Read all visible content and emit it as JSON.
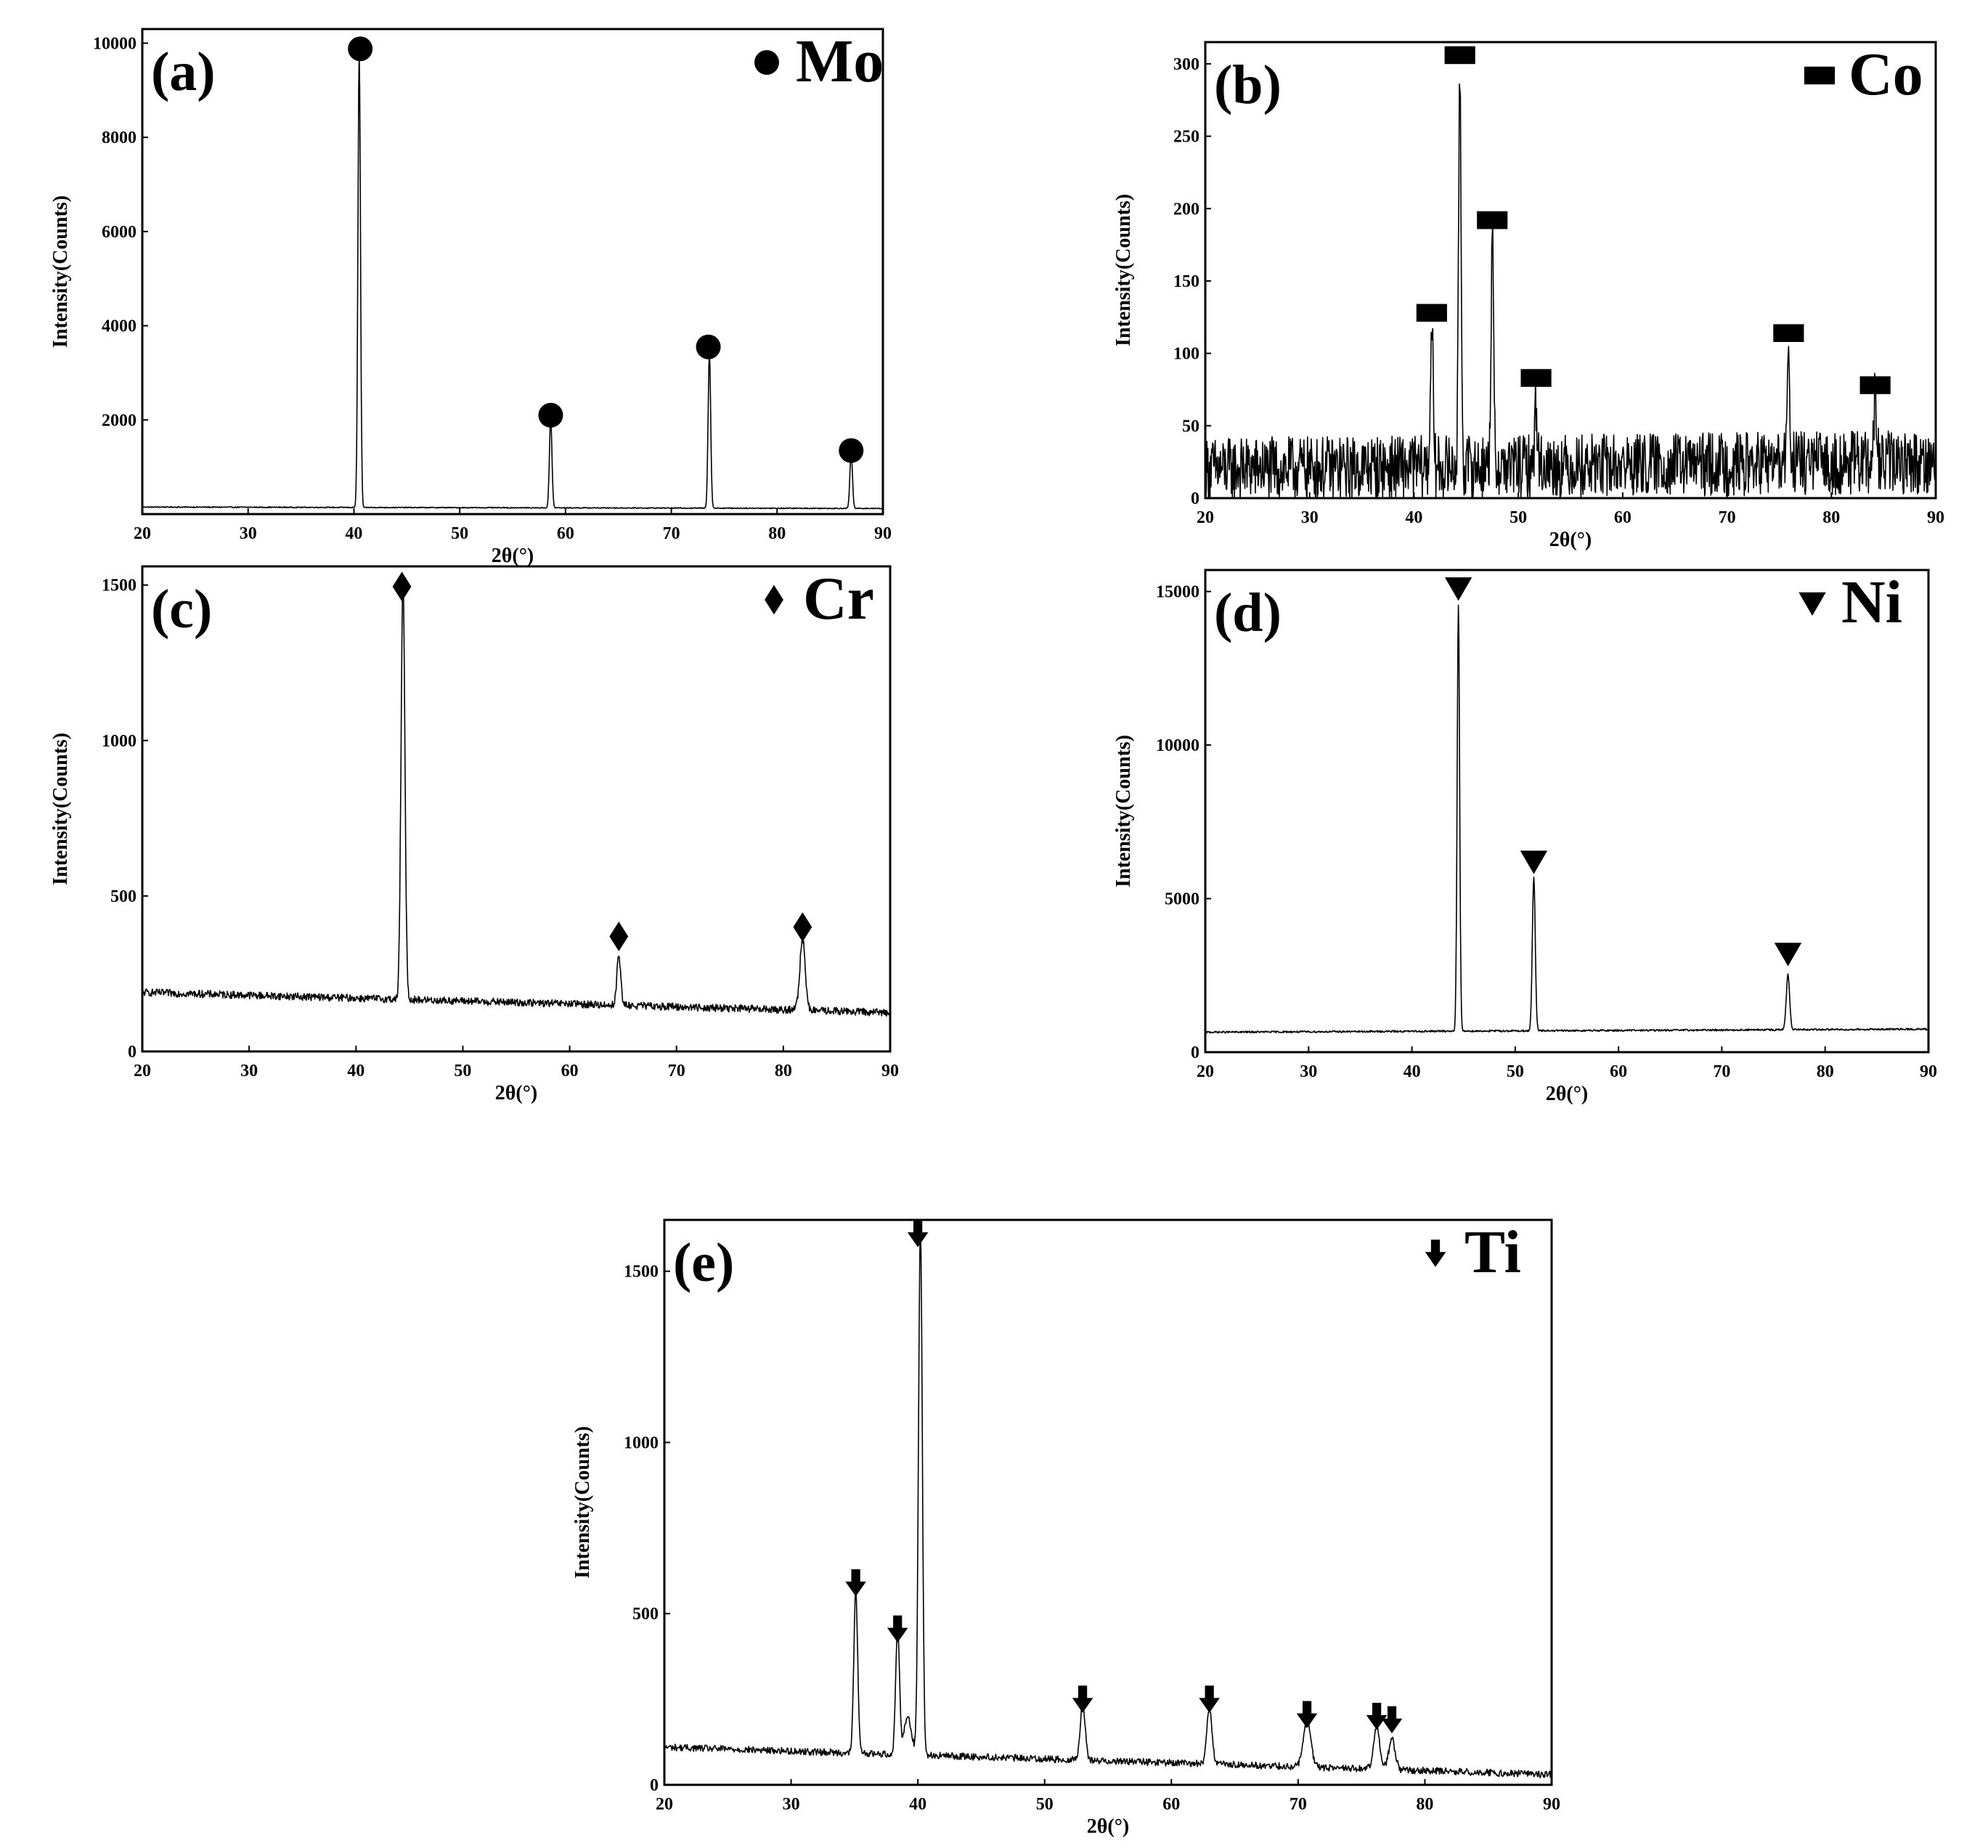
{
  "chart_data": [
    {
      "panel": "(a)",
      "type": "line",
      "xlabel": "2θ(°)",
      "ylabel": "Intensity(Counts)",
      "xlim": [
        20,
        90
      ],
      "ylim": [
        0,
        10300
      ],
      "xticks": [
        20,
        30,
        40,
        50,
        60,
        70,
        80,
        90
      ],
      "yticks": [
        2000,
        4000,
        6000,
        8000,
        10000
      ],
      "legend": {
        "label": "Mo",
        "marker": "circle",
        "position": "top-right"
      },
      "baseline": {
        "start": 150,
        "end": 120,
        "noise": 10
      },
      "peaks": [
        {
          "x": 40.5,
          "y": 9700,
          "width": 0.12
        },
        {
          "x": 58.6,
          "y": 1900,
          "width": 0.12
        },
        {
          "x": 73.6,
          "y": 3300,
          "width": 0.12
        },
        {
          "x": 87.0,
          "y": 1200,
          "width": 0.12
        }
      ],
      "markers": [
        {
          "x": 40.6,
          "y": 9880
        },
        {
          "x": 58.6,
          "y": 2100
        },
        {
          "x": 73.5,
          "y": 3550
        },
        {
          "x": 87.0,
          "y": 1350
        }
      ]
    },
    {
      "panel": "(b)",
      "type": "line",
      "xlabel": "2θ(°)",
      "ylabel": "Intensity(Counts)",
      "xlim": [
        20,
        90
      ],
      "ylim": [
        0,
        315
      ],
      "xticks": [
        20,
        30,
        40,
        50,
        60,
        70,
        80,
        90
      ],
      "yticks": [
        0,
        50,
        100,
        150,
        200,
        250,
        300
      ],
      "legend": {
        "label": "Co",
        "marker": "square",
        "position": "top-right"
      },
      "baseline": {
        "start": 20,
        "end": 25,
        "noise": 22
      },
      "peaks": [
        {
          "x": 41.7,
          "y": 105,
          "width": 0.12
        },
        {
          "x": 44.4,
          "y": 275,
          "width": 0.12
        },
        {
          "x": 47.5,
          "y": 160,
          "width": 0.12
        },
        {
          "x": 51.7,
          "y": 45,
          "width": 0.12
        },
        {
          "x": 75.9,
          "y": 80,
          "width": 0.12
        },
        {
          "x": 84.2,
          "y": 45,
          "width": 0.12
        }
      ],
      "markers": [
        {
          "x": 41.7,
          "y": 128
        },
        {
          "x": 44.4,
          "y": 306
        },
        {
          "x": 47.5,
          "y": 192
        },
        {
          "x": 51.7,
          "y": 83
        },
        {
          "x": 75.9,
          "y": 114
        },
        {
          "x": 84.2,
          "y": 78
        }
      ]
    },
    {
      "panel": "(c)",
      "type": "line",
      "xlabel": "2θ(°)",
      "ylabel": "Intensity(Counts)",
      "xlim": [
        20,
        90
      ],
      "ylim": [
        0,
        1560
      ],
      "xticks": [
        20,
        30,
        40,
        50,
        60,
        70,
        80,
        90
      ],
      "yticks": [
        0,
        500,
        1000,
        1500
      ],
      "legend": {
        "label": "Cr",
        "marker": "diamond",
        "position": "top-right"
      },
      "baseline": {
        "start": 190,
        "end": 125,
        "noise": 12
      },
      "peaks": [
        {
          "x": 44.4,
          "y": 1350,
          "width": 0.18
        },
        {
          "x": 64.6,
          "y": 160,
          "width": 0.18
        },
        {
          "x": 81.8,
          "y": 230,
          "width": 0.25
        }
      ],
      "markers": [
        {
          "x": 44.3,
          "y": 1495
        },
        {
          "x": 64.6,
          "y": 370
        },
        {
          "x": 81.8,
          "y": 400
        }
      ]
    },
    {
      "panel": "(d)",
      "type": "line",
      "xlabel": "2θ(°)",
      "ylabel": "Intensity(Counts)",
      "xlim": [
        20,
        90
      ],
      "ylim": [
        0,
        15700
      ],
      "xticks": [
        20,
        30,
        40,
        50,
        60,
        70,
        80,
        90
      ],
      "yticks": [
        0,
        5000,
        10000,
        15000
      ],
      "legend": {
        "label": "Ni",
        "marker": "triangle-down",
        "position": "top-right"
      },
      "baseline": {
        "start": 650,
        "end": 750,
        "noise": 30
      },
      "peaks": [
        {
          "x": 44.5,
          "y": 13900,
          "width": 0.12
        },
        {
          "x": 51.8,
          "y": 5000,
          "width": 0.14
        },
        {
          "x": 76.4,
          "y": 1800,
          "width": 0.16
        }
      ],
      "markers": [
        {
          "x": 44.5,
          "y": 15100
        },
        {
          "x": 51.8,
          "y": 6200
        },
        {
          "x": 76.4,
          "y": 3200
        }
      ]
    },
    {
      "panel": "(e)",
      "type": "line",
      "xlabel": "2θ(°)",
      "ylabel": "Intensity(Counts)",
      "xlim": [
        20,
        90
      ],
      "ylim": [
        0,
        1650
      ],
      "xticks": [
        20,
        30,
        40,
        50,
        60,
        70,
        80,
        90
      ],
      "yticks": [
        0,
        500,
        1000,
        1500
      ],
      "legend": {
        "label": "Ti",
        "marker": "arrow-down",
        "position": "top-right"
      },
      "baseline": {
        "start": 110,
        "end": 30,
        "noise": 10
      },
      "peaks": [
        {
          "x": 35.1,
          "y": 480,
          "width": 0.15
        },
        {
          "x": 38.4,
          "y": 370,
          "width": 0.15
        },
        {
          "x": 39.2,
          "y": 110,
          "width": 0.3
        },
        {
          "x": 40.2,
          "y": 1550,
          "width": 0.15
        },
        {
          "x": 53.0,
          "y": 160,
          "width": 0.2
        },
        {
          "x": 63.0,
          "y": 170,
          "width": 0.2
        },
        {
          "x": 70.7,
          "y": 130,
          "width": 0.3
        },
        {
          "x": 76.2,
          "y": 120,
          "width": 0.25
        },
        {
          "x": 77.4,
          "y": 90,
          "width": 0.25
        }
      ],
      "markers": [
        {
          "x": 35.1,
          "y": 590
        },
        {
          "x": 38.4,
          "y": 455
        },
        {
          "x": 40.0,
          "y": 1610
        },
        {
          "x": 53.0,
          "y": 250
        },
        {
          "x": 63.0,
          "y": 250
        },
        {
          "x": 70.7,
          "y": 205
        },
        {
          "x": 76.2,
          "y": 200
        },
        {
          "x": 77.4,
          "y": 190
        }
      ]
    }
  ]
}
